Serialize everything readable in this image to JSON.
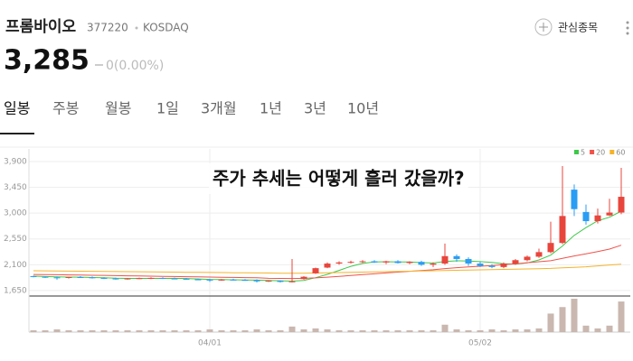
{
  "header": {
    "name": "프롬바이오",
    "code": "377220",
    "market": "KOSDAQ",
    "watch": "관심종목",
    "price": "3,285",
    "change": "0(0.00%)"
  },
  "tabs": [
    "일봉",
    "주봉",
    "월봉",
    "1일",
    "3개월",
    "1년",
    "3년",
    "10년"
  ],
  "chart_data": {
    "type": "candlestick",
    "annotation": "주가 추세는 어떻게 흘러 갔을까?",
    "categories": [
      null,
      null,
      null,
      null,
      null,
      null,
      null,
      null,
      null,
      null,
      null,
      null,
      null,
      null,
      null,
      "04/01",
      null,
      null,
      null,
      null,
      null,
      null,
      null,
      null,
      null,
      null,
      null,
      null,
      null,
      null,
      null,
      null,
      null,
      null,
      null,
      null,
      null,
      null,
      "05/02",
      null,
      null,
      null,
      null,
      null,
      null,
      null,
      null,
      null,
      null,
      null,
      null
    ],
    "open": [
      1900,
      1890,
      1880,
      1870,
      1885,
      1880,
      1870,
      1860,
      1850,
      1860,
      1865,
      1870,
      1860,
      1855,
      1845,
      1840,
      1830,
      1840,
      1835,
      1830,
      1810,
      1820,
      1800,
      1850,
      1950,
      2050,
      2120,
      2140,
      2150,
      2160,
      2140,
      2160,
      2130,
      2150,
      2100,
      2120,
      2250,
      2200,
      2120,
      2080,
      2060,
      2120,
      2180,
      2240,
      2320,
      2480,
      3410,
      3020,
      2860,
      2960,
      3010
    ],
    "high": [
      1910,
      1900,
      1895,
      1890,
      1900,
      1895,
      1880,
      1875,
      1870,
      1875,
      1880,
      1880,
      1875,
      1870,
      1860,
      1855,
      1850,
      1855,
      1850,
      1845,
      1830,
      1830,
      2200,
      1900,
      2050,
      2140,
      2160,
      2170,
      2180,
      2180,
      2170,
      2180,
      2160,
      2170,
      2140,
      2470,
      2280,
      2230,
      2150,
      2110,
      2140,
      2200,
      2260,
      2380,
      2850,
      3820,
      3500,
      3150,
      3080,
      3250,
      3790
    ],
    "low": [
      1880,
      1870,
      1840,
      1860,
      1870,
      1860,
      1850,
      1840,
      1840,
      1850,
      1850,
      1850,
      1845,
      1840,
      1830,
      1800,
      1820,
      1825,
      1820,
      1790,
      1800,
      1790,
      1790,
      1840,
      1940,
      2040,
      2100,
      2120,
      2130,
      2130,
      2110,
      2120,
      2110,
      2080,
      2060,
      2100,
      2150,
      2080,
      2060,
      2040,
      2040,
      2100,
      2160,
      2220,
      2300,
      2460,
      2950,
      2800,
      2820,
      2950,
      2980
    ],
    "close": [
      1890,
      1880,
      1870,
      1885,
      1880,
      1870,
      1860,
      1850,
      1860,
      1865,
      1870,
      1860,
      1855,
      1845,
      1840,
      1830,
      1840,
      1835,
      1830,
      1810,
      1820,
      1800,
      1810,
      1890,
      2040,
      2120,
      2140,
      2150,
      2160,
      2140,
      2160,
      2130,
      2150,
      2100,
      2120,
      2250,
      2200,
      2120,
      2080,
      2060,
      2120,
      2180,
      2240,
      2320,
      2480,
      2950,
      3070,
      2860,
      2960,
      3010,
      3285
    ],
    "up_color": "#e8453c",
    "down_color": "#2a9df4",
    "volume": [
      2,
      2,
      3,
      2,
      2,
      2,
      2,
      2,
      2,
      2,
      2,
      2,
      2,
      2,
      2,
      3,
      2,
      2,
      2,
      3,
      2,
      2,
      6,
      3,
      4,
      3,
      2,
      2,
      2,
      2,
      2,
      2,
      2,
      2,
      2,
      8,
      3,
      2,
      2,
      3,
      2,
      3,
      3,
      4,
      20,
      27,
      36,
      7,
      4,
      7,
      33
    ],
    "volume_color": "#c9b7b0",
    "series": [
      {
        "name": "5",
        "color": "#3ec94a",
        "values": [
          1900,
          1895,
          1890,
          1885,
          1883,
          1877,
          1873,
          1865,
          1861,
          1861,
          1861,
          1861,
          1862,
          1859,
          1852,
          1844,
          1840,
          1838,
          1835,
          1831,
          1827,
          1821,
          1814,
          1826,
          1874,
          1932,
          2002,
          2072,
          2123,
          2147,
          2153,
          2149,
          2150,
          2136,
          2130,
          2156,
          2168,
          2165,
          2154,
          2142,
          2116,
          2112,
          2132,
          2184,
          2268,
          2426,
          2612,
          2747,
          2867,
          2929,
          3034
        ]
      },
      {
        "name": "20",
        "color": "#f0524a",
        "values": [
          1930,
          1928,
          1925,
          1922,
          1920,
          1917,
          1914,
          1910,
          1907,
          1903,
          1900,
          1897,
          1894,
          1891,
          1888,
          1885,
          1882,
          1879,
          1876,
          1873,
          1862,
          1861,
          1860,
          1862,
          1870,
          1883,
          1897,
          1912,
          1927,
          1942,
          1957,
          1972,
          1986,
          1999,
          2012,
          2032,
          2049,
          2062,
          2074,
          2087,
          2101,
          2118,
          2135,
          2153,
          2170,
          2210,
          2253,
          2290,
          2330,
          2372,
          2440
        ]
      },
      {
        "name": "60",
        "color": "#f5b32a",
        "values": [
          1995,
          1993,
          1991,
          1989,
          1987,
          1985,
          1983,
          1981,
          1979,
          1977,
          1975,
          1973,
          1971,
          1969,
          1967,
          1965,
          1963,
          1961,
          1959,
          1957,
          1955,
          1953,
          1951,
          1952,
          1955,
          1959,
          1963,
          1967,
          1971,
          1975,
          1979,
          1983,
          1987,
          1991,
          1995,
          1999,
          2003,
          2007,
          2011,
          2015,
          2019,
          2023,
          2027,
          2031,
          2036,
          2045,
          2055,
          2065,
          2080,
          2095,
          2110
        ]
      }
    ],
    "ylim": [
      1570,
      4120
    ],
    "yticks": [
      {
        "value": 1650,
        "label": "1,650"
      },
      {
        "value": 2100,
        "label": "2,100"
      },
      {
        "value": 2550,
        "label": "2,550"
      },
      {
        "value": 3000,
        "label": "3,000"
      },
      {
        "value": 3450,
        "label": "3,450"
      },
      {
        "value": 3900,
        "label": "3,900"
      }
    ],
    "grid": true,
    "legend": "top-right"
  }
}
